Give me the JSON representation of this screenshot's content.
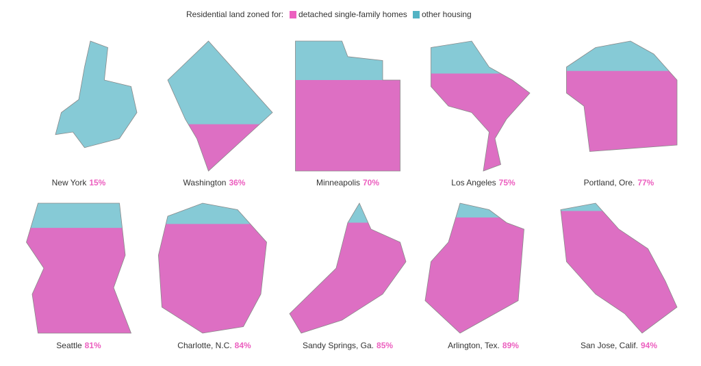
{
  "chart_data": {
    "type": "map",
    "legend_title": "Residential land zoned for:",
    "series": [
      {
        "name": "detached single-family homes",
        "color": "#ec5fbf"
      },
      {
        "name": "other housing",
        "color": "#52b3c4"
      }
    ],
    "categories": [
      "New York",
      "Washington",
      "Minneapolis",
      "Los Angeles",
      "Portland, Ore.",
      "Seattle",
      "Charlotte, N.C.",
      "Sandy Springs, Ga.",
      "Arlington, Tex.",
      "San Jose, Calif."
    ],
    "values": [
      15,
      36,
      70,
      75,
      77,
      81,
      84,
      85,
      89,
      94
    ],
    "value_labels": [
      "15%",
      "36%",
      "70%",
      "75%",
      "77%",
      "81%",
      "84%",
      "85%",
      "89%",
      "94%"
    ]
  }
}
